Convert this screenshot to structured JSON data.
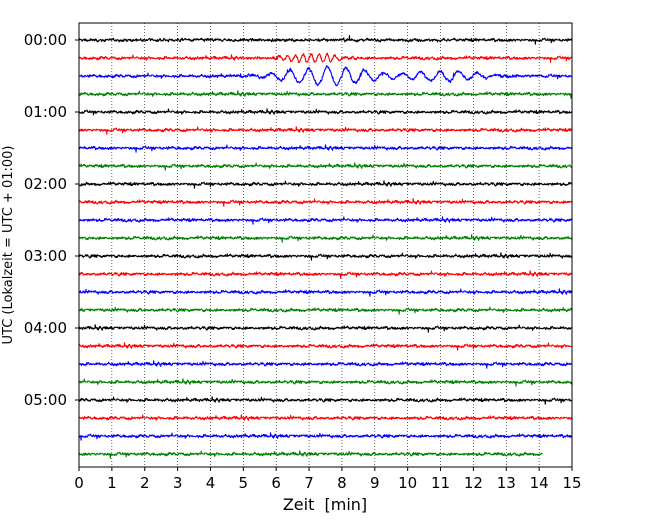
{
  "chart_data": {
    "type": "line",
    "title": "",
    "xlabel": "Zeit  [min]",
    "ylabel": "UTC (Lokalzeit = UTC + 01:00)",
    "xlim": [
      0,
      15
    ],
    "x_ticks": [
      0,
      1,
      2,
      3,
      4,
      5,
      6,
      7,
      8,
      9,
      10,
      11,
      12,
      13,
      14,
      15
    ],
    "x_tick_labels": [
      "0",
      "1",
      "2",
      "3",
      "4",
      "5",
      "6",
      "7",
      "8",
      "9",
      "10",
      "11",
      "12",
      "13",
      "14",
      "15"
    ],
    "y_tick_labels": [
      "00:00",
      "01:00",
      "02:00",
      "03:00",
      "04:00",
      "05:00"
    ],
    "grid": "vertical dotted lines at each minute",
    "trace_colors": [
      "#000000",
      "#ff0000",
      "#0000ff",
      "#008000"
    ],
    "traces_per_hour": 4,
    "minutes_per_trace": 15,
    "traces": [
      {
        "start": "00:00",
        "color": "#000000",
        "end_min": 15
      },
      {
        "start": "00:15",
        "color": "#ff0000",
        "end_min": 15,
        "event": {
          "from_min": 4.8,
          "to_min": 8.0,
          "peak_min": 7.1,
          "amplitude": "medium"
        }
      },
      {
        "start": "00:30",
        "color": "#0000ff",
        "end_min": 15,
        "event": {
          "from_min": 4.5,
          "to_min": 12.8,
          "peak_min": 7.6,
          "amplitude": "large"
        }
      },
      {
        "start": "00:45",
        "color": "#008000",
        "end_min": 15
      },
      {
        "start": "01:00",
        "color": "#000000",
        "end_min": 15
      },
      {
        "start": "01:15",
        "color": "#ff0000",
        "end_min": 15
      },
      {
        "start": "01:30",
        "color": "#0000ff",
        "end_min": 15
      },
      {
        "start": "01:45",
        "color": "#008000",
        "end_min": 15
      },
      {
        "start": "02:00",
        "color": "#000000",
        "end_min": 15
      },
      {
        "start": "02:15",
        "color": "#ff0000",
        "end_min": 15
      },
      {
        "start": "02:30",
        "color": "#0000ff",
        "end_min": 15
      },
      {
        "start": "02:45",
        "color": "#008000",
        "end_min": 15
      },
      {
        "start": "03:00",
        "color": "#000000",
        "end_min": 15
      },
      {
        "start": "03:15",
        "color": "#ff0000",
        "end_min": 15
      },
      {
        "start": "03:30",
        "color": "#0000ff",
        "end_min": 15
      },
      {
        "start": "03:45",
        "color": "#008000",
        "end_min": 15
      },
      {
        "start": "04:00",
        "color": "#000000",
        "end_min": 15
      },
      {
        "start": "04:15",
        "color": "#ff0000",
        "end_min": 15
      },
      {
        "start": "04:30",
        "color": "#0000ff",
        "end_min": 15
      },
      {
        "start": "04:45",
        "color": "#008000",
        "end_min": 15
      },
      {
        "start": "05:00",
        "color": "#000000",
        "end_min": 15
      },
      {
        "start": "05:15",
        "color": "#ff0000",
        "end_min": 15
      },
      {
        "start": "05:30",
        "color": "#0000ff",
        "end_min": 15
      },
      {
        "start": "05:45",
        "color": "#008000",
        "end_min": 14.1
      }
    ]
  }
}
